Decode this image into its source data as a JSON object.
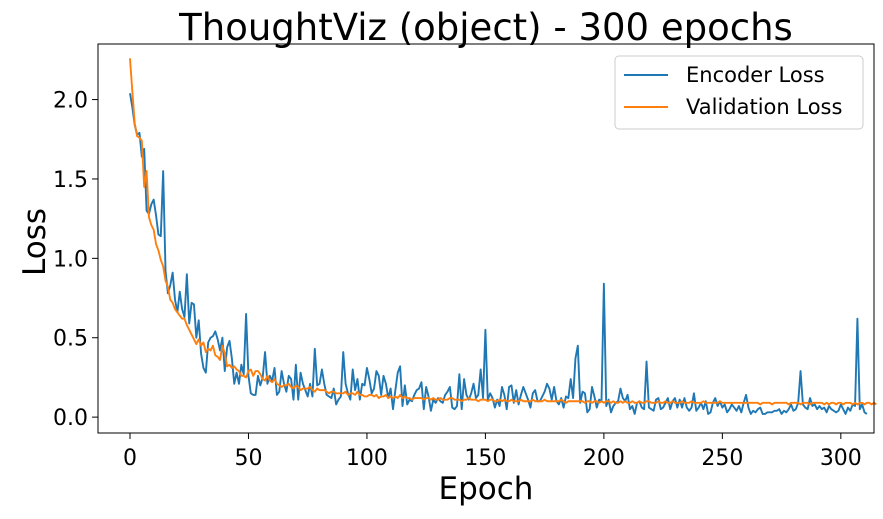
{
  "chart_data": {
    "type": "line",
    "title": "ThoughtViz (object) - 300 epochs",
    "xlabel": "Epoch",
    "ylabel": "Loss",
    "xlim": [
      -13.5,
      314
    ],
    "ylim": [
      -0.1,
      2.35
    ],
    "xticks": [
      0,
      50,
      100,
      150,
      200,
      250,
      300
    ],
    "yticks": [
      0.0,
      0.5,
      1.0,
      1.5,
      2.0
    ],
    "ytick_labels": [
      "0.0",
      "0.5",
      "1.0",
      "1.5",
      "2.0"
    ],
    "grid": false,
    "legend_position": "top-right",
    "x_start": 0,
    "x_step": 1,
    "series": [
      {
        "name": "Encoder Loss",
        "color": "#1f77b4",
        "values": [
          2.04,
          1.95,
          1.84,
          1.78,
          1.79,
          1.64,
          1.69,
          1.3,
          1.28,
          1.34,
          1.37,
          1.27,
          1.15,
          1.14,
          1.55,
          0.92,
          0.78,
          0.83,
          0.91,
          0.74,
          0.66,
          0.79,
          0.68,
          0.63,
          0.9,
          0.59,
          0.72,
          0.71,
          0.5,
          0.61,
          0.4,
          0.31,
          0.28,
          0.47,
          0.5,
          0.51,
          0.54,
          0.49,
          0.42,
          0.5,
          0.29,
          0.44,
          0.48,
          0.37,
          0.21,
          0.28,
          0.21,
          0.33,
          0.27,
          0.65,
          0.26,
          0.15,
          0.14,
          0.14,
          0.26,
          0.2,
          0.25,
          0.41,
          0.21,
          0.26,
          0.23,
          0.31,
          0.14,
          0.16,
          0.29,
          0.21,
          0.16,
          0.26,
          0.24,
          0.11,
          0.33,
          0.11,
          0.28,
          0.21,
          0.17,
          0.13,
          0.21,
          0.13,
          0.43,
          0.2,
          0.21,
          0.3,
          0.21,
          0.14,
          0.13,
          0.12,
          0.18,
          0.08,
          0.11,
          0.13,
          0.41,
          0.21,
          0.15,
          0.11,
          0.3,
          0.17,
          0.24,
          0.11,
          0.21,
          0.2,
          0.31,
          0.24,
          0.15,
          0.18,
          0.29,
          0.26,
          0.14,
          0.26,
          0.21,
          0.12,
          0.18,
          0.05,
          0.17,
          0.28,
          0.32,
          0.07,
          0.2,
          0.08,
          0.11,
          0.1,
          0.14,
          0.17,
          0.18,
          0.22,
          0.05,
          0.19,
          0.13,
          0.04,
          0.11,
          0.09,
          0.12,
          0.1,
          0.09,
          0.14,
          0.16,
          0.19,
          0.06,
          0.05,
          0.07,
          0.27,
          0.05,
          0.24,
          0.14,
          0.11,
          0.15,
          0.21,
          0.12,
          0.14,
          0.3,
          0.12,
          0.55,
          0.11,
          0.15,
          0.12,
          0.06,
          0.11,
          0.07,
          0.19,
          0.14,
          0.05,
          0.19,
          0.2,
          0.09,
          0.17,
          0.08,
          0.14,
          0.19,
          0.15,
          0.11,
          0.06,
          0.15,
          0.17,
          0.1,
          0.1,
          0.13,
          0.16,
          0.21,
          0.18,
          0.11,
          0.19,
          0.1,
          0.08,
          0.12,
          0.06,
          0.13,
          0.12,
          0.24,
          0.12,
          0.37,
          0.45,
          0.09,
          0.16,
          0.15,
          0.03,
          0.05,
          0.19,
          0.13,
          0.06,
          0.11,
          0.1,
          0.84,
          0.07,
          0.11,
          0.03,
          0.07,
          0.09,
          0.1,
          0.18,
          0.12,
          0.1,
          0.14,
          0.05,
          0.07,
          0.02,
          0.09,
          0.1,
          0.06,
          0.05,
          0.35,
          0.06,
          0.05,
          0.04,
          0.11,
          0.12,
          0.05,
          0.06,
          0.09,
          0.12,
          0.05,
          0.1,
          0.12,
          0.06,
          0.11,
          0.06,
          0.12,
          0.06,
          0.04,
          0.06,
          0.15,
          0.04,
          0.06,
          0.09,
          0.05,
          0.1,
          0.02,
          0.03,
          0.09,
          0.12,
          0.07,
          0.1,
          0.06,
          0.08,
          0.03,
          0.05,
          0.08,
          0.06,
          0.04,
          0.07,
          0.03,
          0.09,
          0.14,
          0.06,
          0.02,
          0.04,
          0.03,
          0.05,
          0.06,
          0.02,
          0.02,
          0.03,
          0.03,
          0.03,
          0.04,
          0.04,
          0.05,
          0.02,
          0.04,
          0.03,
          0.05,
          0.08,
          0.04,
          0.05,
          0.09,
          0.29,
          0.08,
          0.06,
          0.05,
          0.12,
          0.07,
          0.08,
          0.05,
          0.07,
          0.05,
          0.06,
          0.03,
          0.07,
          0.05,
          0.04,
          0.03,
          0.04,
          0.08,
          0.05,
          0.02,
          0.06,
          0.04,
          0.08,
          0.07,
          0.62,
          0.05,
          0.08,
          0.03,
          0.02
        ]
      },
      {
        "name": "Validation Loss",
        "color": "#ff7f0e",
        "values": [
          2.26,
          2.05,
          1.85,
          1.77,
          1.76,
          1.74,
          1.45,
          1.55,
          1.26,
          1.21,
          1.18,
          1.09,
          1.05,
          0.99,
          0.95,
          0.86,
          0.82,
          0.74,
          0.72,
          0.68,
          0.66,
          0.64,
          0.62,
          0.62,
          0.58,
          0.55,
          0.52,
          0.49,
          0.46,
          0.49,
          0.45,
          0.47,
          0.41,
          0.43,
          0.42,
          0.45,
          0.39,
          0.38,
          0.36,
          0.45,
          0.4,
          0.32,
          0.33,
          0.31,
          0.32,
          0.3,
          0.29,
          0.26,
          0.26,
          0.25,
          0.29,
          0.3,
          0.26,
          0.29,
          0.29,
          0.27,
          0.24,
          0.23,
          0.26,
          0.23,
          0.22,
          0.24,
          0.21,
          0.2,
          0.19,
          0.2,
          0.2,
          0.21,
          0.19,
          0.18,
          0.2,
          0.19,
          0.17,
          0.18,
          0.18,
          0.18,
          0.19,
          0.17,
          0.16,
          0.18,
          0.17,
          0.17,
          0.17,
          0.16,
          0.15,
          0.16,
          0.16,
          0.15,
          0.15,
          0.15,
          0.15,
          0.16,
          0.14,
          0.15,
          0.15,
          0.14,
          0.16,
          0.14,
          0.14,
          0.13,
          0.13,
          0.14,
          0.14,
          0.13,
          0.14,
          0.12,
          0.13,
          0.13,
          0.14,
          0.12,
          0.13,
          0.12,
          0.13,
          0.12,
          0.14,
          0.12,
          0.13,
          0.12,
          0.12,
          0.11,
          0.12,
          0.12,
          0.12,
          0.12,
          0.11,
          0.12,
          0.12,
          0.11,
          0.12,
          0.11,
          0.11,
          0.12,
          0.11,
          0.11,
          0.11,
          0.12,
          0.12,
          0.11,
          0.11,
          0.11,
          0.1,
          0.11,
          0.11,
          0.12,
          0.11,
          0.11,
          0.11,
          0.1,
          0.11,
          0.11,
          0.11,
          0.1,
          0.11,
          0.11,
          0.1,
          0.1,
          0.11,
          0.1,
          0.11,
          0.1,
          0.1,
          0.11,
          0.1,
          0.1,
          0.1,
          0.11,
          0.1,
          0.1,
          0.1,
          0.1,
          0.11,
          0.1,
          0.1,
          0.1,
          0.1,
          0.11,
          0.1,
          0.1,
          0.1,
          0.1,
          0.1,
          0.1,
          0.11,
          0.1,
          0.09,
          0.1,
          0.1,
          0.1,
          0.1,
          0.1,
          0.1,
          0.1,
          0.09,
          0.1,
          0.1,
          0.09,
          0.1,
          0.1,
          0.09,
          0.1,
          0.09,
          0.1,
          0.1,
          0.09,
          0.1,
          0.09,
          0.09,
          0.1,
          0.09,
          0.1,
          0.09,
          0.09,
          0.1,
          0.09,
          0.09,
          0.1,
          0.09,
          0.09,
          0.1,
          0.1,
          0.09,
          0.09,
          0.09,
          0.1,
          0.09,
          0.09,
          0.1,
          0.09,
          0.09,
          0.1,
          0.09,
          0.09,
          0.09,
          0.1,
          0.09,
          0.09,
          0.09,
          0.1,
          0.09,
          0.09,
          0.09,
          0.09,
          0.1,
          0.09,
          0.09,
          0.09,
          0.09,
          0.09,
          0.09,
          0.1,
          0.09,
          0.09,
          0.09,
          0.09,
          0.09,
          0.09,
          0.09,
          0.09,
          0.09,
          0.09,
          0.09,
          0.09,
          0.09,
          0.09,
          0.09,
          0.09,
          0.08,
          0.09,
          0.09,
          0.09,
          0.09,
          0.08,
          0.09,
          0.09,
          0.09,
          0.09,
          0.09,
          0.09,
          0.08,
          0.09,
          0.09,
          0.09,
          0.09,
          0.08,
          0.09,
          0.09,
          0.09,
          0.08,
          0.09,
          0.09,
          0.09,
          0.09,
          0.09,
          0.08,
          0.09,
          0.08,
          0.09,
          0.09,
          0.08,
          0.09,
          0.09,
          0.08,
          0.09,
          0.09,
          0.09,
          0.08,
          0.09,
          0.08,
          0.09,
          0.09,
          0.08,
          0.09,
          0.09,
          0.08,
          0.09,
          0.08
        ]
      }
    ]
  }
}
